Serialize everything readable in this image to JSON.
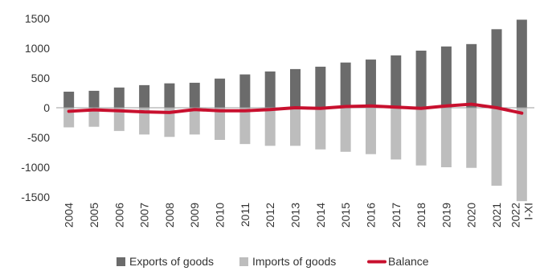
{
  "chart_data": {
    "type": "bar",
    "categories": [
      "2004",
      "2005",
      "2006",
      "2007",
      "2008",
      "2009",
      "2010",
      "2011",
      "2012",
      "2013",
      "2014",
      "2015",
      "2016",
      "2017",
      "2018",
      "2019",
      "2020",
      "2021",
      "2022 I-XI"
    ],
    "category_lines": [
      [
        "2004"
      ],
      [
        "2005"
      ],
      [
        "2006"
      ],
      [
        "2007"
      ],
      [
        "2008"
      ],
      [
        "2009"
      ],
      [
        "2010"
      ],
      [
        "2011"
      ],
      [
        "2012"
      ],
      [
        "2013"
      ],
      [
        "2014"
      ],
      [
        "2015"
      ],
      [
        "2016"
      ],
      [
        "2017"
      ],
      [
        "2018"
      ],
      [
        "2019"
      ],
      [
        "2020"
      ],
      [
        "2021"
      ],
      [
        "2022",
        "I-XI"
      ]
    ],
    "series": [
      {
        "name": "Exports of goods",
        "type": "bar",
        "color": "#6b6b6b",
        "values": [
          270,
          285,
          340,
          380,
          410,
          420,
          490,
          560,
          610,
          650,
          690,
          760,
          810,
          880,
          960,
          1030,
          1070,
          1320,
          1480
        ]
      },
      {
        "name": "Imports of goods",
        "type": "bar",
        "color": "#bdbdbd",
        "values": [
          -330,
          -320,
          -390,
          -450,
          -490,
          -450,
          -540,
          -610,
          -640,
          -640,
          -700,
          -740,
          -780,
          -870,
          -970,
          -1000,
          -1010,
          -1310,
          -1570
        ]
      },
      {
        "name": "Balance",
        "type": "line",
        "color": "#c8102e",
        "values": [
          -60,
          -35,
          -50,
          -70,
          -80,
          -30,
          -50,
          -50,
          -30,
          0,
          -10,
          20,
          30,
          10,
          -10,
          30,
          60,
          0,
          -90
        ]
      }
    ],
    "ylim": [
      -1500,
      1500
    ],
    "yticks": [
      1500,
      1000,
      500,
      0,
      -500,
      -1000,
      -1500
    ],
    "legend_position": "bottom",
    "grid": false
  }
}
